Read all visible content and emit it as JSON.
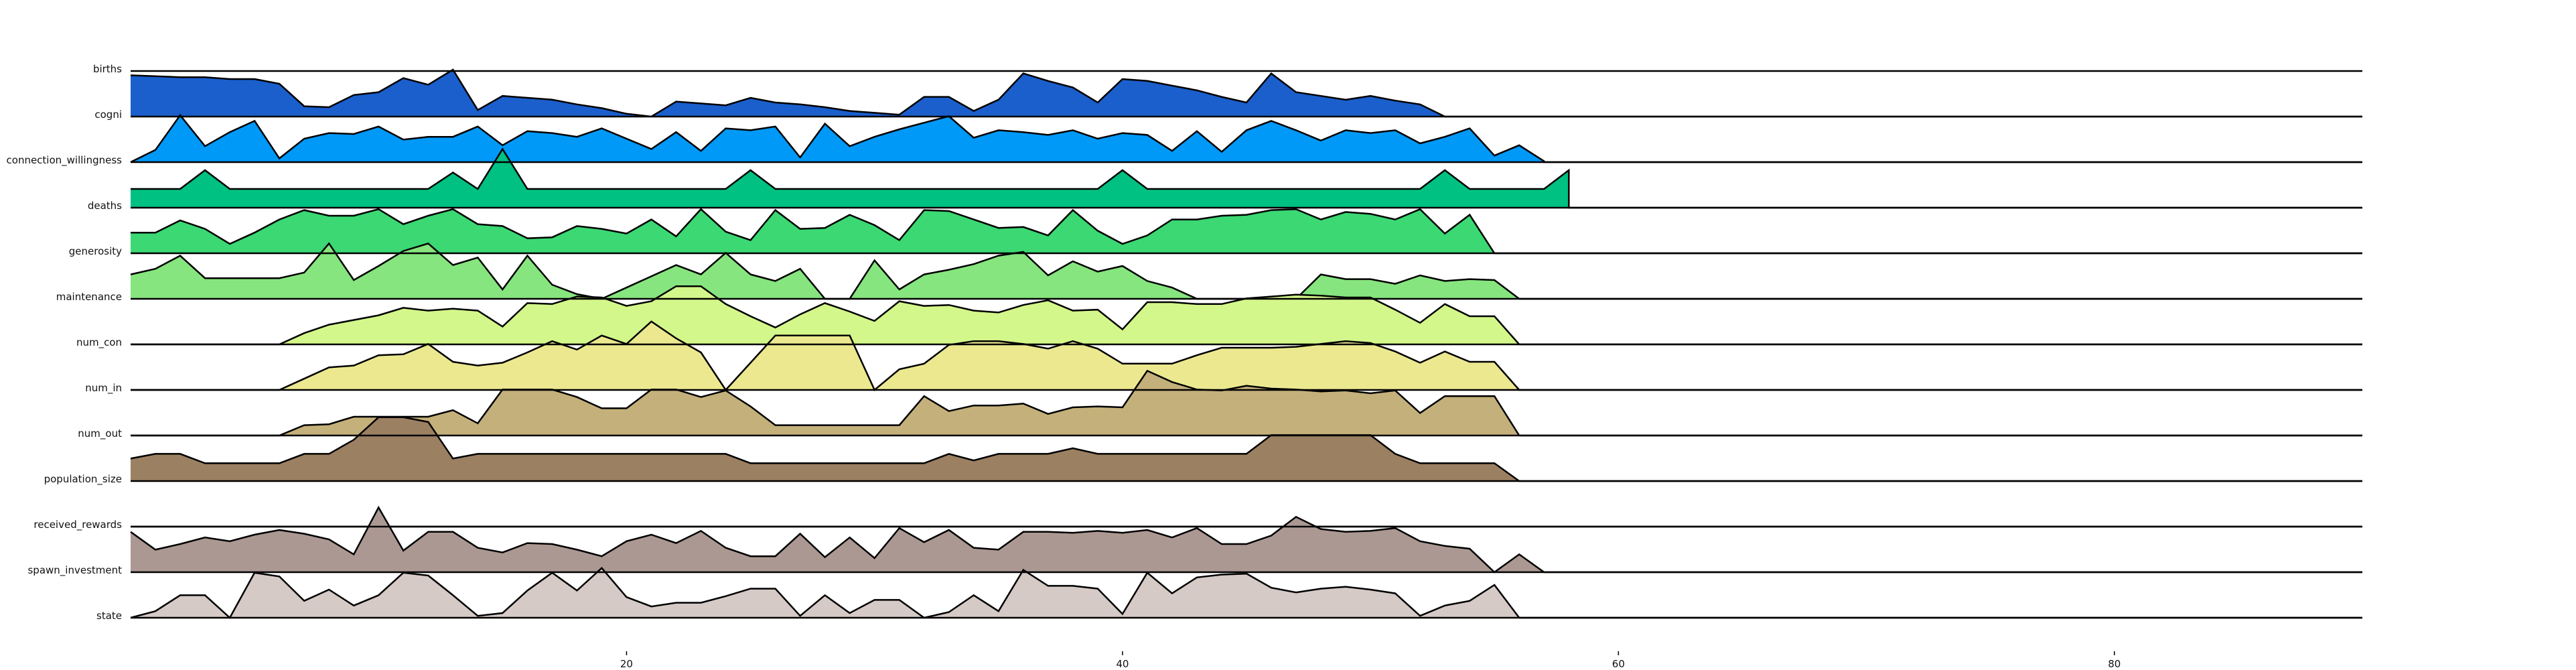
{
  "chart_data": {
    "type": "area",
    "title": "",
    "xlabel": "",
    "ylabel": "",
    "xlim": [
      0,
      90
    ],
    "xticks": [
      20,
      40,
      60,
      80
    ],
    "grid": false,
    "legend": "none",
    "series": [
      {
        "name": "births",
        "color": "#1a5fcc",
        "values": [
          0.88,
          0.86,
          0.84,
          0.84,
          0.8,
          0.8,
          0.7,
          0.22,
          0.2,
          0.46,
          0.52,
          0.82,
          0.68,
          1.0,
          0.14,
          0.44,
          0.4,
          0.36,
          0.26,
          0.18,
          0.06,
          0.0,
          0.32,
          0.28,
          0.24,
          0.4,
          0.3,
          0.26,
          0.2,
          0.12,
          0.08,
          0.04,
          0.42,
          0.42,
          0.12,
          0.36,
          0.92,
          0.76,
          0.62,
          0.3,
          0.8,
          0.76,
          0.66,
          0.56,
          0.42,
          0.3,
          0.92,
          0.52,
          0.44,
          0.36,
          0.44,
          0.34,
          0.26,
          0.0,
          0.0,
          0.0,
          0.0
        ]
      },
      {
        "name": "cogni",
        "color": "#0099f7",
        "values": [
          0.0,
          0.26,
          1.0,
          0.34,
          0.64,
          0.88,
          0.08,
          0.5,
          0.62,
          0.6,
          0.76,
          0.48,
          0.54,
          0.54,
          0.76,
          0.36,
          0.66,
          0.62,
          0.54,
          0.72,
          0.5,
          0.28,
          0.64,
          0.24,
          0.72,
          0.68,
          0.76,
          0.1,
          0.82,
          0.34,
          0.54,
          0.7,
          0.84,
          0.98,
          0.52,
          0.68,
          0.64,
          0.58,
          0.68,
          0.5,
          0.62,
          0.58,
          0.24,
          0.66,
          0.22,
          0.68,
          0.88,
          0.68,
          0.46,
          0.68,
          0.62,
          0.68,
          0.4,
          0.54,
          0.72,
          0.14,
          0.36,
          0.02
        ]
      },
      {
        "name": "connection_willingness",
        "color": "#00c082",
        "values": [
          0.4,
          0.4,
          0.4,
          0.8,
          0.4,
          0.4,
          0.4,
          0.4,
          0.4,
          0.4,
          0.4,
          0.4,
          0.4,
          0.75,
          0.4,
          1.25,
          0.4,
          0.4,
          0.4,
          0.4,
          0.4,
          0.4,
          0.4,
          0.4,
          0.4,
          0.8,
          0.4,
          0.4,
          0.4,
          0.4,
          0.4,
          0.4,
          0.4,
          0.4,
          0.4,
          0.4,
          0.4,
          0.4,
          0.4,
          0.4,
          0.8,
          0.4,
          0.4,
          0.4,
          0.4,
          0.4,
          0.4,
          0.4,
          0.4,
          0.4,
          0.4,
          0.4,
          0.4,
          0.8,
          0.4,
          0.4,
          0.4,
          0.4,
          0.8
        ]
      },
      {
        "name": "deaths",
        "color": "#3bd873",
        "values": [
          0.44,
          0.44,
          0.7,
          0.52,
          0.2,
          0.44,
          0.72,
          0.92,
          0.8,
          0.8,
          0.94,
          0.62,
          0.8,
          0.94,
          0.62,
          0.58,
          0.32,
          0.34,
          0.58,
          0.52,
          0.42,
          0.72,
          0.36,
          0.94,
          0.46,
          0.28,
          0.92,
          0.52,
          0.54,
          0.82,
          0.6,
          0.28,
          0.92,
          0.9,
          0.72,
          0.54,
          0.56,
          0.38,
          0.92,
          0.48,
          0.2,
          0.38,
          0.72,
          0.72,
          0.8,
          0.82,
          0.92,
          0.94,
          0.72,
          0.88,
          0.84,
          0.72,
          0.94,
          0.42,
          0.82,
          0.0,
          0.0
        ]
      },
      {
        "name": "generosity",
        "color": "#86e57e",
        "values": [
          0.52,
          0.64,
          0.92,
          0.44,
          0.44,
          0.44,
          0.44,
          0.56,
          1.18,
          0.4,
          0.7,
          1.02,
          1.18,
          0.72,
          0.88,
          0.2,
          0.92,
          0.3,
          0.1,
          0.0,
          0.24,
          0.48,
          0.72,
          0.52,
          0.98,
          0.52,
          0.38,
          0.64,
          0.0,
          0.0,
          0.82,
          0.2,
          0.52,
          0.62,
          0.74,
          0.92,
          1.0,
          0.5,
          0.8,
          0.58,
          0.7,
          0.38,
          0.24,
          0.0,
          0.0,
          0.0,
          0.0,
          0.0,
          0.52,
          0.42,
          0.42,
          0.32,
          0.5,
          0.38,
          0.42,
          0.4,
          0.0
        ]
      },
      {
        "name": "maintenance",
        "color": "#d3f78a",
        "values": [
          0.0,
          0.0,
          0.0,
          0.0,
          0.0,
          0.0,
          0.0,
          0.24,
          0.42,
          0.52,
          0.62,
          0.78,
          0.72,
          0.76,
          0.72,
          0.38,
          0.88,
          0.86,
          1.02,
          1.0,
          0.82,
          0.92,
          1.24,
          1.24,
          0.86,
          0.6,
          0.36,
          0.64,
          0.88,
          0.7,
          0.5,
          0.92,
          0.82,
          0.84,
          0.72,
          0.68,
          0.84,
          0.94,
          0.72,
          0.74,
          0.32,
          0.9,
          0.9,
          0.86,
          0.86,
          0.98,
          1.02,
          1.06,
          1.04,
          1.0,
          1.0,
          0.74,
          0.46,
          0.86,
          0.6,
          0.6,
          0.0
        ]
      },
      {
        "name": "num_con",
        "color": "#ece890",
        "values": [
          0.0,
          0.0,
          0.0,
          0.0,
          0.0,
          0.0,
          0.0,
          0.24,
          0.48,
          0.52,
          0.74,
          0.76,
          0.98,
          0.6,
          0.52,
          0.58,
          0.8,
          1.04,
          0.86,
          1.16,
          0.98,
          1.46,
          1.1,
          0.8,
          0.0,
          0.58,
          1.16,
          1.16,
          1.16,
          1.16,
          0.0,
          0.44,
          0.56,
          0.96,
          1.04,
          1.04,
          0.98,
          0.88,
          1.04,
          0.88,
          0.56,
          0.56,
          0.56,
          0.74,
          0.9,
          0.9,
          0.9,
          0.92,
          0.98,
          1.04,
          1.0,
          0.82,
          0.58,
          0.82,
          0.6,
          0.6,
          0.0
        ]
      },
      {
        "name": "num_in",
        "color": "#c4b07a",
        "values": [
          0.0,
          0.0,
          0.0,
          0.0,
          0.0,
          0.0,
          0.0,
          0.22,
          0.24,
          0.4,
          0.4,
          0.4,
          0.4,
          0.54,
          0.26,
          0.98,
          0.98,
          0.98,
          0.82,
          0.58,
          0.58,
          0.98,
          0.98,
          0.82,
          0.96,
          0.62,
          0.22,
          0.22,
          0.22,
          0.22,
          0.22,
          0.22,
          0.84,
          0.52,
          0.64,
          0.64,
          0.68,
          0.46,
          0.6,
          0.62,
          0.6,
          1.38,
          1.14,
          0.98,
          0.96,
          1.06,
          1.0,
          0.98,
          0.94,
          0.96,
          0.9,
          0.96,
          0.48,
          0.84,
          0.84,
          0.84,
          0.0
        ]
      },
      {
        "name": "num_out",
        "color": "#9c8062",
        "values": [
          0.48,
          0.58,
          0.58,
          0.38,
          0.38,
          0.38,
          0.38,
          0.58,
          0.58,
          0.88,
          1.36,
          1.36,
          1.26,
          0.48,
          0.58,
          0.58,
          0.58,
          0.58,
          0.58,
          0.58,
          0.58,
          0.58,
          0.58,
          0.58,
          0.58,
          0.38,
          0.38,
          0.38,
          0.38,
          0.38,
          0.38,
          0.38,
          0.38,
          0.58,
          0.44,
          0.58,
          0.58,
          0.58,
          0.7,
          0.58,
          0.58,
          0.58,
          0.58,
          0.58,
          0.58,
          0.58,
          0.98,
          0.98,
          0.98,
          0.98,
          0.98,
          0.58,
          0.38,
          0.38,
          0.38,
          0.38,
          0.0
        ]
      },
      {
        "name": "population_size",
        "color": "#ffffff",
        "values": [
          0.0,
          0.0,
          0.0,
          0.0,
          0.0,
          0.0,
          0.0,
          0.0,
          0.0,
          0.0,
          0.0,
          0.0,
          0.0,
          0.0,
          0.0,
          0.0,
          0.0,
          0.0,
          0.0,
          0.0,
          0.0,
          0.0,
          0.0,
          0.0,
          0.0,
          0.0,
          0.0,
          0.0,
          0.0,
          0.0,
          0.0,
          0.0,
          0.0,
          0.0,
          0.0,
          0.0,
          0.0,
          0.0,
          0.0,
          0.0,
          0.0,
          0.0,
          0.0,
          0.0,
          0.0,
          0.0,
          0.0,
          0.0,
          0.0,
          0.0,
          0.0,
          0.0,
          0.0,
          0.0,
          0.0,
          0.0,
          0.0
        ]
      },
      {
        "name": "received_rewards",
        "color": "#ac9892",
        "values": [
          0.86,
          0.48,
          0.6,
          0.74,
          0.66,
          0.8,
          0.9,
          0.82,
          0.7,
          0.38,
          1.38,
          0.46,
          0.86,
          0.86,
          0.52,
          0.42,
          0.62,
          0.6,
          0.48,
          0.34,
          0.66,
          0.8,
          0.62,
          0.88,
          0.52,
          0.34,
          0.34,
          0.82,
          0.32,
          0.74,
          0.3,
          0.94,
          0.64,
          0.9,
          0.52,
          0.48,
          0.86,
          0.86,
          0.84,
          0.88,
          0.84,
          0.9,
          0.74,
          0.94,
          0.6,
          0.6,
          0.78,
          1.18,
          0.92,
          0.86,
          0.88,
          0.94,
          0.66,
          0.56,
          0.5,
          0.0,
          0.38,
          0.0
        ]
      },
      {
        "name": "spawn_investment",
        "color": "#d6cac6",
        "values": [
          0.0,
          0.14,
          0.48,
          0.48,
          0.0,
          0.96,
          0.88,
          0.36,
          0.6,
          0.26,
          0.48,
          0.96,
          0.9,
          0.48,
          0.04,
          0.1,
          0.58,
          0.96,
          0.58,
          1.06,
          0.44,
          0.24,
          0.32,
          0.32,
          0.46,
          0.62,
          0.62,
          0.04,
          0.48,
          0.1,
          0.38,
          0.38,
          0.0,
          0.12,
          0.48,
          0.14,
          1.02,
          0.68,
          0.68,
          0.62,
          0.08,
          0.96,
          0.52,
          0.86,
          0.92,
          0.94,
          0.64,
          0.54,
          0.62,
          0.66,
          0.6,
          0.52,
          0.04,
          0.26,
          0.36,
          0.7,
          0.0
        ]
      }
    ],
    "row_labels": [
      "births",
      "cogni",
      "connection_willingness",
      "deaths",
      "generosity",
      "maintenance",
      "num_con",
      "num_in",
      "num_out",
      "population_size",
      "received_rewards",
      "spawn_investment",
      "state"
    ]
  }
}
